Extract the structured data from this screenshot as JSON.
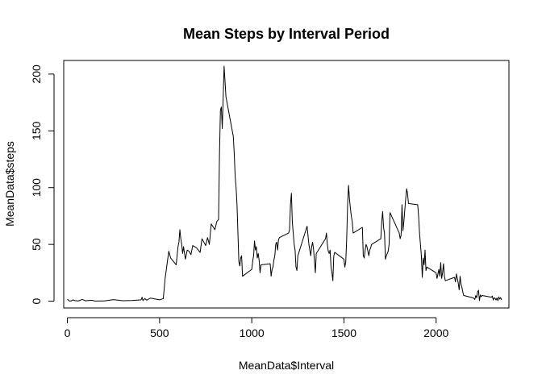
{
  "chart_data": {
    "type": "line",
    "title": "Mean Steps by Interval Period",
    "xlabel": "MeanData$Interval",
    "ylabel": "MeanData$steps",
    "xlim": [
      -20,
      2395
    ],
    "ylim": [
      -6,
      212
    ],
    "xticks": [
      0,
      500,
      1000,
      1500,
      2000
    ],
    "yticks": [
      0,
      50,
      100,
      150,
      200
    ],
    "grid": false,
    "line_color": "#000000",
    "series": [
      {
        "x": [
          0,
          10,
          20,
          30,
          40,
          60,
          80,
          100,
          130,
          150,
          200,
          250,
          300,
          350,
          400,
          405,
          410,
          420,
          430,
          450,
          480,
          500,
          520,
          530,
          550,
          560,
          570,
          590,
          600,
          605,
          610,
          615,
          620,
          625,
          630,
          640,
          650,
          660,
          670,
          680,
          700,
          710,
          720,
          730,
          740,
          750,
          760,
          770,
          780,
          800,
          810,
          820,
          825,
          830,
          835,
          840,
          850,
          860,
          900,
          905,
          910,
          915,
          920,
          925,
          930,
          935,
          940,
          945,
          950,
          1000,
          1005,
          1010,
          1015,
          1020,
          1025,
          1030,
          1035,
          1040,
          1045,
          1050,
          1100,
          1105,
          1110,
          1115,
          1120,
          1125,
          1130,
          1135,
          1140,
          1145,
          1150,
          1200,
          1205,
          1210,
          1215,
          1220,
          1225,
          1230,
          1235,
          1240,
          1245,
          1250,
          1300,
          1305,
          1310,
          1315,
          1320,
          1325,
          1330,
          1335,
          1340,
          1345,
          1350,
          1400,
          1405,
          1410,
          1415,
          1420,
          1425,
          1430,
          1435,
          1440,
          1445,
          1450,
          1500,
          1505,
          1510,
          1515,
          1520,
          1525,
          1530,
          1535,
          1540,
          1545,
          1550,
          1600,
          1605,
          1610,
          1615,
          1620,
          1625,
          1630,
          1635,
          1640,
          1645,
          1650,
          1700,
          1705,
          1710,
          1715,
          1720,
          1725,
          1730,
          1735,
          1740,
          1745,
          1750,
          1800,
          1805,
          1810,
          1815,
          1820,
          1825,
          1830,
          1835,
          1840,
          1845,
          1850,
          1900,
          1905,
          1910,
          1915,
          1920,
          1925,
          1930,
          1935,
          1940,
          1945,
          1950,
          2000,
          2005,
          2010,
          2015,
          2020,
          2025,
          2030,
          2035,
          2040,
          2045,
          2050,
          2100,
          2105,
          2110,
          2115,
          2120,
          2125,
          2130,
          2135,
          2140,
          2145,
          2150,
          2200,
          2205,
          2210,
          2215,
          2220,
          2225,
          2230,
          2235,
          2240,
          2245,
          2250,
          2300,
          2305,
          2310,
          2315,
          2320,
          2325,
          2330,
          2335,
          2340,
          2345,
          2350,
          2355
        ],
        "y": [
          1.7,
          0.3,
          0.1,
          1.2,
          0.5,
          0.2,
          1.5,
          0.3,
          0.8,
          0.1,
          0.2,
          1.4,
          0.4,
          0.6,
          1.2,
          3.5,
          0.5,
          2.3,
          0.9,
          2.7,
          1.8,
          1.2,
          2.2,
          20.0,
          44.0,
          38.0,
          36.0,
          32.0,
          48.0,
          52.0,
          63.0,
          55.0,
          50.0,
          42.0,
          48.0,
          37.0,
          45.0,
          44.0,
          41.0,
          49.0,
          47.0,
          45.0,
          43.0,
          55.0,
          52.0,
          49.0,
          56.0,
          50.0,
          68.0,
          63.0,
          70.0,
          72.0,
          130.0,
          168.0,
          171.0,
          152.0,
          207.0,
          180.0,
          145.0,
          130.0,
          110.0,
          100.0,
          85.0,
          60.0,
          35.0,
          31.0,
          38.0,
          40.0,
          22.0,
          28.0,
          35.0,
          40.0,
          53.0,
          45.0,
          48.0,
          38.0,
          42.0,
          36.0,
          25.0,
          32.0,
          33.0,
          22.0,
          28.0,
          30.0,
          36.0,
          40.0,
          50.0,
          52.0,
          45.0,
          54.0,
          56.0,
          60.0,
          63.0,
          85.0,
          95.0,
          70.0,
          60.0,
          50.0,
          45.0,
          30.0,
          27.0,
          40.0,
          66.0,
          58.0,
          50.0,
          45.0,
          40.0,
          48.0,
          52.0,
          46.0,
          36.0,
          25.0,
          42.0,
          55.0,
          60.0,
          50.0,
          44.0,
          42.0,
          45.0,
          30.0,
          25.0,
          18.0,
          40.0,
          43.0,
          37.0,
          30.0,
          35.0,
          55.0,
          85.0,
          102.0,
          90.0,
          82.0,
          75.0,
          70.0,
          60.0,
          65.0,
          40.0,
          38.0,
          45.0,
          50.0,
          48.0,
          44.0,
          40.0,
          45.0,
          47.0,
          50.0,
          55.0,
          70.0,
          79.0,
          65.0,
          60.0,
          37.0,
          40.0,
          42.0,
          44.0,
          50.0,
          78.0,
          60.0,
          55.0,
          58.0,
          85.0,
          62.0,
          70.0,
          80.0,
          90.0,
          99.0,
          95.0,
          86.0,
          85.0,
          75.0,
          60.0,
          50.0,
          40.0,
          21.0,
          38.0,
          32.0,
          45.0,
          27.0,
          30.0,
          25.0,
          20.0,
          24.0,
          28.0,
          22.0,
          34.0,
          20.0,
          25.0,
          33.0,
          22.0,
          18.0,
          21.0,
          17.0,
          24.0,
          20.0,
          16.0,
          10.0,
          22.0,
          15.0,
          12.0,
          8.0,
          5.0,
          3.0,
          2.5,
          1.5,
          5.0,
          3.0,
          8.0,
          9.6,
          0.5,
          5.5,
          4.0,
          5.0,
          3.5,
          4.5,
          1.0,
          3.0,
          2.5,
          1.0,
          2.8,
          0.5,
          3.8,
          1.8,
          3.2,
          1.1
        ]
      }
    ]
  }
}
